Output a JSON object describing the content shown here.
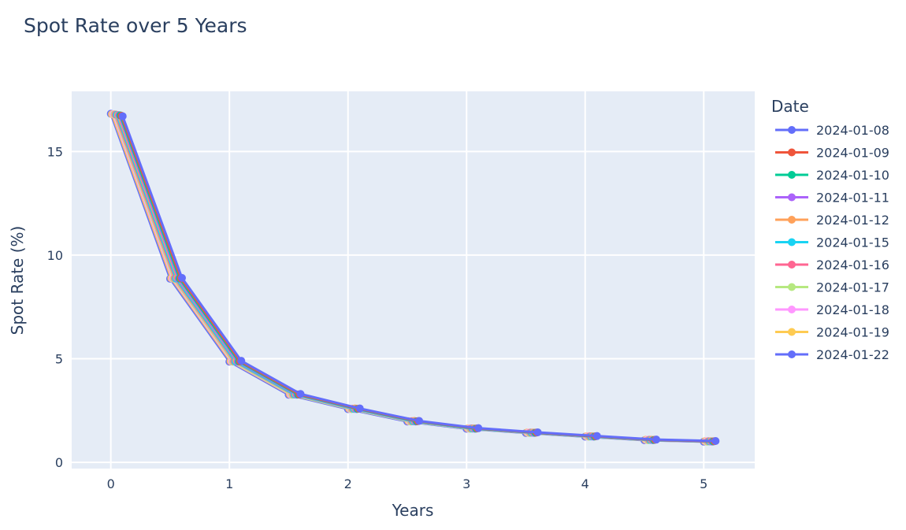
{
  "chart_data": {
    "type": "line",
    "title": "Spot Rate over 5 Years",
    "xlabel": "Years",
    "ylabel": "Spot Rate (%)",
    "legend_title": "Date",
    "legend_position": "right",
    "grid": true,
    "xlim": [
      -0.33,
      5.43
    ],
    "ylim": [
      -0.3,
      17.9
    ],
    "xticks": [
      0,
      1,
      2,
      3,
      4,
      5
    ],
    "yticks": [
      0,
      5,
      10,
      15
    ],
    "x": [
      0,
      0.5,
      1,
      1.5,
      2,
      2.5,
      3,
      3.5,
      4,
      4.5,
      5
    ],
    "series": [
      {
        "name": "2024-01-08",
        "color": "#636efa",
        "x_offset": 0.1,
        "values": [
          16.7,
          8.9,
          4.9,
          3.3,
          2.6,
          2.0,
          1.65,
          1.45,
          1.27,
          1.1,
          1.03
        ]
      },
      {
        "name": "2024-01-09",
        "color": "#ef553b",
        "x_offset": 0.09,
        "values": [
          16.72,
          8.88,
          4.88,
          3.28,
          2.59,
          1.99,
          1.64,
          1.44,
          1.26,
          1.09,
          1.02
        ]
      },
      {
        "name": "2024-01-10",
        "color": "#00cc96",
        "x_offset": 0.08,
        "values": [
          16.74,
          8.87,
          4.87,
          3.27,
          2.58,
          1.98,
          1.63,
          1.43,
          1.25,
          1.08,
          1.01
        ]
      },
      {
        "name": "2024-01-11",
        "color": "#ab63fa",
        "x_offset": 0.07,
        "values": [
          16.75,
          8.86,
          4.86,
          3.26,
          2.57,
          1.97,
          1.62,
          1.42,
          1.24,
          1.07,
          1.0
        ]
      },
      {
        "name": "2024-01-12",
        "color": "#ffa15a",
        "x_offset": 0.06,
        "values": [
          16.76,
          8.9,
          4.9,
          3.29,
          2.6,
          2.0,
          1.64,
          1.44,
          1.26,
          1.09,
          1.02
        ]
      },
      {
        "name": "2024-01-15",
        "color": "#19d3f3",
        "x_offset": 0.05,
        "values": [
          16.77,
          8.87,
          4.87,
          3.27,
          2.58,
          1.98,
          1.63,
          1.43,
          1.25,
          1.08,
          1.01
        ]
      },
      {
        "name": "2024-01-16",
        "color": "#ff6692",
        "x_offset": 0.04,
        "values": [
          16.78,
          8.88,
          4.88,
          3.28,
          2.59,
          1.99,
          1.64,
          1.44,
          1.26,
          1.09,
          1.02
        ]
      },
      {
        "name": "2024-01-17",
        "color": "#b6e880",
        "x_offset": 0.03,
        "values": [
          16.79,
          8.86,
          4.86,
          3.26,
          2.57,
          1.97,
          1.62,
          1.42,
          1.24,
          1.07,
          1.0
        ]
      },
      {
        "name": "2024-01-18",
        "color": "#ff97ff",
        "x_offset": 0.02,
        "values": [
          16.8,
          8.87,
          4.87,
          3.27,
          2.58,
          1.98,
          1.63,
          1.43,
          1.25,
          1.08,
          1.01
        ]
      },
      {
        "name": "2024-01-19",
        "color": "#fecb52",
        "x_offset": 0.01,
        "values": [
          16.8,
          8.88,
          4.88,
          3.28,
          2.59,
          1.99,
          1.64,
          1.44,
          1.26,
          1.09,
          1.02
        ]
      },
      {
        "name": "2024-01-22",
        "color": "#636efa",
        "x_offset": 0.0,
        "values": [
          16.82,
          8.86,
          4.86,
          3.26,
          2.57,
          1.97,
          1.62,
          1.42,
          1.24,
          1.07,
          1.0
        ]
      }
    ]
  },
  "colors": {
    "plot_background": "#e5ecf6",
    "grid": "#ffffff",
    "text": "#2a3f5f"
  }
}
